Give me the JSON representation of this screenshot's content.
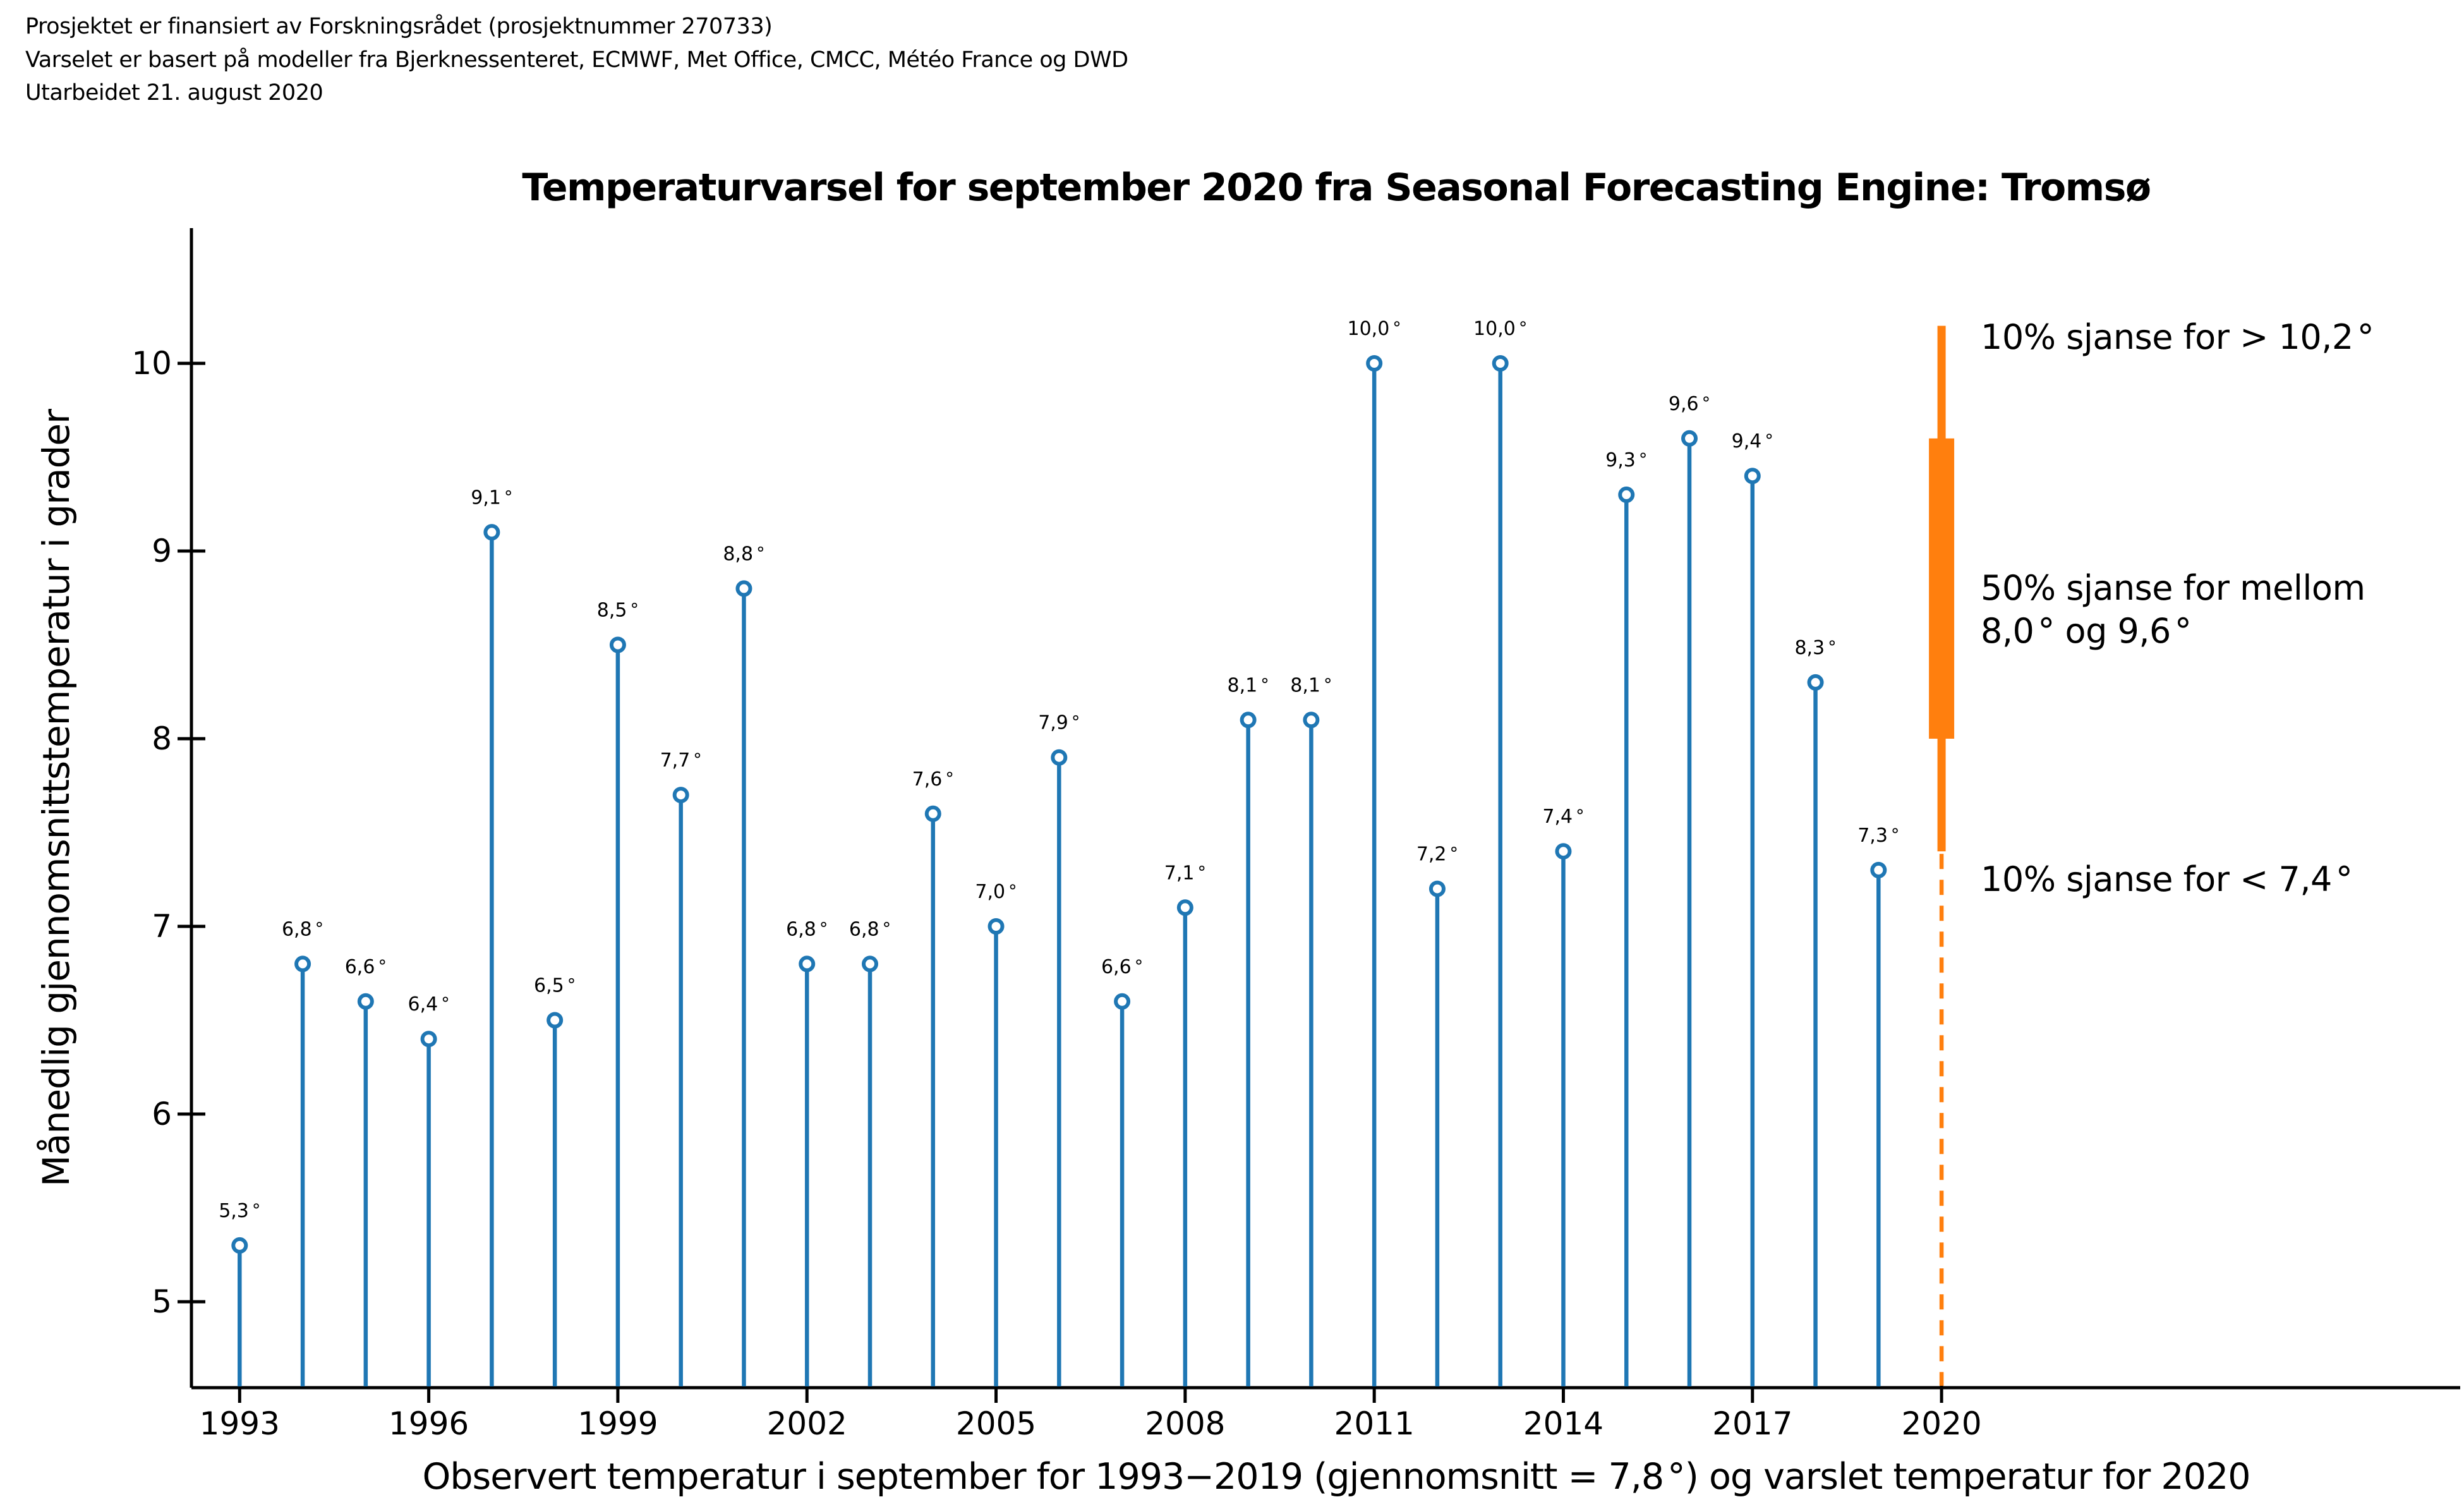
{
  "header": {
    "line1": "Prosjektet er finansiert av Forskningsrådet (prosjektnummer 270733)",
    "line2": "Varselet er basert på modeller fra Bjerknessenteret, ECMWF, Met Office, CMCC, Météo France og DWD",
    "line3": "Utarbeidet 21. august 2020"
  },
  "chart_data": {
    "type": "stem",
    "title": "Temperaturvarsel for september 2020 fra Seasonal Forecasting Engine: Tromsø",
    "ylabel": "Månedlig gjennomsnittstemperatur i grader",
    "xlabel": "Observert temperatur i september for 1993−2019 (gjennomsnitt = 7,8°) og varslet temperatur for 2020",
    "x_ticks": [
      1993,
      1996,
      1999,
      2002,
      2005,
      2008,
      2011,
      2014,
      2017,
      2020
    ],
    "y_ticks": [
      5,
      6,
      7,
      8,
      9,
      10
    ],
    "ylim": [
      4.5,
      10.7
    ],
    "xlim": [
      1992.2,
      2028.2
    ],
    "grid": false,
    "legend": false,
    "observed": {
      "years": [
        1993,
        1994,
        1995,
        1996,
        1997,
        1998,
        1999,
        2000,
        2001,
        2002,
        2003,
        2004,
        2005,
        2006,
        2007,
        2008,
        2009,
        2010,
        2011,
        2012,
        2013,
        2014,
        2015,
        2016,
        2017,
        2018,
        2019
      ],
      "values": [
        5.3,
        6.8,
        6.6,
        6.4,
        9.1,
        6.5,
        8.5,
        7.7,
        8.8,
        6.8,
        6.8,
        7.6,
        7.0,
        7.9,
        6.6,
        7.1,
        8.1,
        8.1,
        10.0,
        7.2,
        10.0,
        7.4,
        9.3,
        9.6,
        9.4,
        8.3,
        7.3
      ],
      "labels": [
        "5,3°",
        "6,8°",
        "6,6°",
        "6,4°",
        "9,1°",
        "6,5°",
        "8,5°",
        "7,7°",
        "8,8°",
        "6,8°",
        "6,8°",
        "7,6°",
        "7,0°",
        "7,9°",
        "6,6°",
        "7,1°",
        "8,1°",
        "8,1°",
        "10,0°",
        "7,2°",
        "10,0°",
        "7,4°",
        "9,3°",
        "9,6°",
        "9,4°",
        "8,3°",
        "7,3°"
      ],
      "mean": 7.8
    },
    "forecast": {
      "year": 2020,
      "p90_upper": 10.2,
      "p50_upper": 9.6,
      "p50_lower": 8.0,
      "p10_lower": 7.4
    },
    "colors": {
      "observed_blue": "#1f77b4",
      "forecast_orange": "#ff7f0e",
      "axis_black": "#000000"
    }
  },
  "annotations": {
    "upper": "10% sjanse for > 10,2°",
    "mid_line1": "50% sjanse for mellom",
    "mid_line2": "8,0° og 9,6°",
    "lower": "10% sjanse for < 7,4°"
  }
}
